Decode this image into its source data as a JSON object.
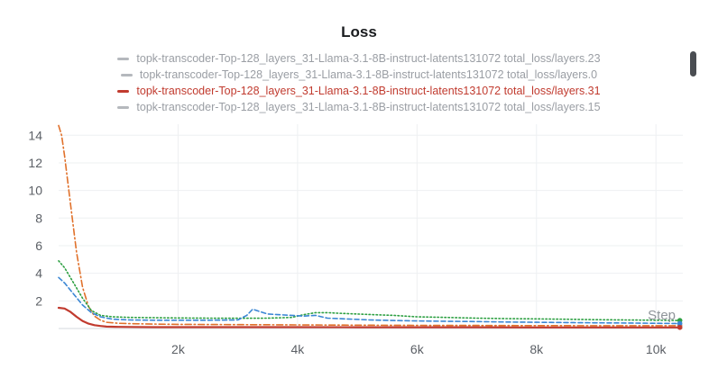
{
  "chart_data": {
    "type": "line",
    "title": "Loss",
    "xlabel": "Step",
    "ylabel": "",
    "xlim": [
      0,
      10450
    ],
    "ylim": [
      0,
      14.8
    ],
    "xticks": [
      2000,
      4000,
      6000,
      8000,
      10000
    ],
    "xtick_labels": [
      "2k",
      "4k",
      "6k",
      "8k",
      "10k"
    ],
    "yticks": [
      2,
      4,
      6,
      8,
      10,
      12,
      14
    ],
    "ytick_labels": [
      "2",
      "4",
      "6",
      "8",
      "10",
      "12",
      "14"
    ],
    "grid": true,
    "legend_position": "top",
    "series": [
      {
        "name": "topk-transcoder-Top-128_layers_31-Llama-3.1-8B-instruct-latents131072 total_loss/layers.23",
        "color": "#3a86d4",
        "style": "dashed",
        "active": false,
        "x": [
          0,
          100,
          250,
          400,
          550,
          700,
          900,
          1200,
          1600,
          2000,
          2500,
          3000,
          3150,
          3250,
          3350,
          3500,
          3700,
          3900,
          4100,
          4300,
          4500,
          4800,
          5200,
          5600,
          6000,
          6500,
          7000,
          7500,
          8000,
          8500,
          9000,
          9500,
          10000,
          10400
        ],
        "y": [
          3.7,
          3.3,
          2.5,
          1.7,
          1.15,
          0.85,
          0.68,
          0.62,
          0.6,
          0.6,
          0.6,
          0.62,
          0.95,
          1.4,
          1.25,
          1.05,
          1.0,
          0.95,
          0.9,
          0.95,
          0.75,
          0.7,
          0.62,
          0.58,
          0.55,
          0.52,
          0.5,
          0.47,
          0.45,
          0.43,
          0.41,
          0.4,
          0.38,
          0.36
        ]
      },
      {
        "name": "topk-transcoder-Top-128_layers_31-Llama-3.1-8B-instruct-latents131072 total_loss/layers.0",
        "color": "#2ea043",
        "style": "dotted",
        "active": false,
        "x": [
          0,
          100,
          250,
          400,
          550,
          700,
          900,
          1200,
          1600,
          2000,
          2500,
          3000,
          3500,
          3900,
          4100,
          4300,
          4500,
          4700,
          5000,
          5300,
          5600,
          6000,
          6500,
          7000,
          7500,
          8000,
          8500,
          9000,
          9500,
          10000,
          10400
        ],
        "y": [
          4.9,
          4.4,
          3.3,
          2.2,
          1.3,
          0.95,
          0.85,
          0.8,
          0.78,
          0.76,
          0.75,
          0.74,
          0.75,
          0.8,
          1.0,
          1.15,
          1.15,
          1.1,
          1.05,
          1.0,
          0.95,
          0.85,
          0.8,
          0.75,
          0.72,
          0.7,
          0.67,
          0.64,
          0.62,
          0.6,
          0.58
        ]
      },
      {
        "name": "topk-transcoder-Top-128_layers_31-Llama-3.1-8B-instruct-latents131072 total_loss/layers.31",
        "color": "#c13b2f",
        "style": "solid",
        "active": true,
        "x": [
          0,
          100,
          200,
          300,
          400,
          500,
          600,
          700,
          800,
          1000,
          1200,
          1600,
          2000,
          3000,
          4000,
          5000,
          6000,
          7000,
          8000,
          9000,
          10000,
          10400
        ],
        "y": [
          1.5,
          1.45,
          1.2,
          0.85,
          0.55,
          0.35,
          0.24,
          0.18,
          0.14,
          0.12,
          0.11,
          0.1,
          0.1,
          0.1,
          0.1,
          0.09,
          0.09,
          0.09,
          0.08,
          0.08,
          0.08,
          0.08
        ]
      },
      {
        "name": "topk-transcoder-Top-128_layers_31-Llama-3.1-8B-instruct-latents131072 total_loss/layers.15",
        "color": "#e0712b",
        "style": "dashdot",
        "active": false,
        "x": [
          0,
          50,
          100,
          200,
          300,
          400,
          500,
          600,
          700,
          800,
          1000,
          1200,
          1600,
          2000,
          3000,
          4000,
          5000,
          6000,
          7000,
          8000,
          9000,
          10000,
          10400
        ],
        "y": [
          14.7,
          14.0,
          12.5,
          9.0,
          5.5,
          3.0,
          1.6,
          0.9,
          0.6,
          0.45,
          0.38,
          0.35,
          0.32,
          0.3,
          0.28,
          0.26,
          0.24,
          0.23,
          0.22,
          0.21,
          0.2,
          0.2,
          0.2
        ]
      }
    ]
  }
}
